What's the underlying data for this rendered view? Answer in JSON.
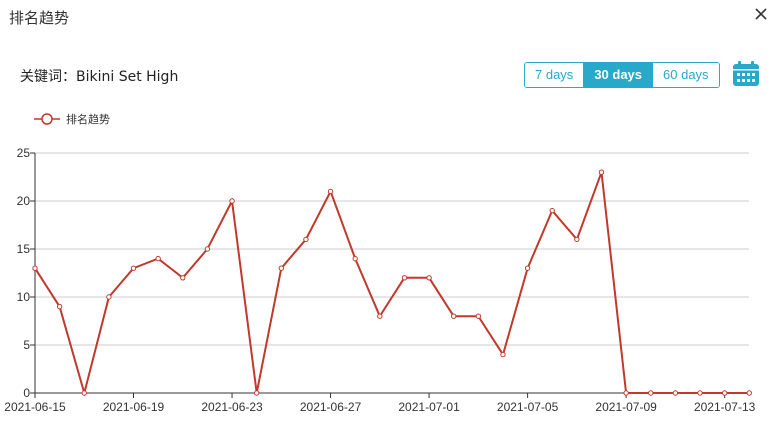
{
  "dialog": {
    "title": "排名趋势"
  },
  "keyword": {
    "text": "关键词：Bikini Set High"
  },
  "range_buttons": [
    {
      "label": "7 days",
      "active": false
    },
    {
      "label": "30 days",
      "active": true
    },
    {
      "label": "60 days",
      "active": false
    }
  ],
  "colors": {
    "accent": "#29a9c9",
    "series": "#c0392b",
    "grid": "#cccccc"
  },
  "icons": {
    "close": "close-icon",
    "calendar": "calendar-icon"
  },
  "chart_data": {
    "type": "line",
    "legend": "top-left",
    "grid": true,
    "ylim": [
      0,
      25
    ],
    "yticks": [
      0,
      5,
      10,
      15,
      20,
      25
    ],
    "xtick_labels": [
      "2021-06-15",
      "2021-06-19",
      "2021-06-23",
      "2021-06-27",
      "2021-07-01",
      "2021-07-05",
      "2021-07-09",
      "2021-07-13"
    ],
    "x": [
      "2021-06-15",
      "2021-06-16",
      "2021-06-17",
      "2021-06-18",
      "2021-06-19",
      "2021-06-20",
      "2021-06-21",
      "2021-06-22",
      "2021-06-23",
      "2021-06-24",
      "2021-06-25",
      "2021-06-26",
      "2021-06-27",
      "2021-06-28",
      "2021-06-29",
      "2021-06-30",
      "2021-07-01",
      "2021-07-02",
      "2021-07-03",
      "2021-07-04",
      "2021-07-05",
      "2021-07-06",
      "2021-07-07",
      "2021-07-08",
      "2021-07-09",
      "2021-07-10",
      "2021-07-11",
      "2021-07-12",
      "2021-07-13",
      "2021-07-14"
    ],
    "series": [
      {
        "name": "排名趋势",
        "values": [
          13,
          9,
          0,
          10,
          13,
          14,
          12,
          15,
          20,
          0,
          13,
          16,
          21,
          14,
          8,
          12,
          12,
          8,
          8,
          4,
          13,
          19,
          16,
          23,
          0,
          0,
          0,
          0,
          0,
          0
        ]
      }
    ]
  }
}
